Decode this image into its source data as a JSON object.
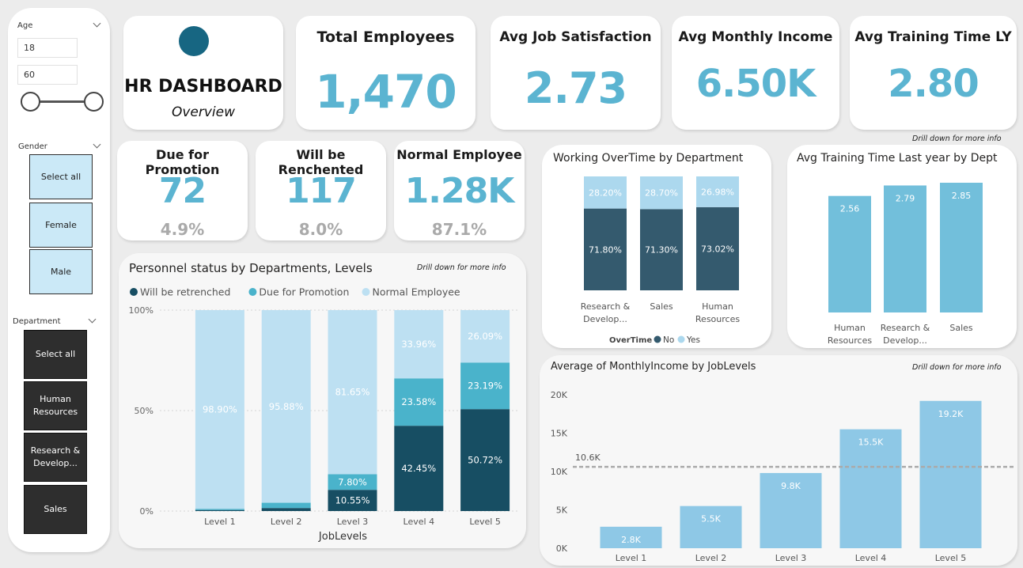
{
  "slicers": {
    "age": {
      "title": "Age",
      "min_value": "18",
      "max_value": "60"
    },
    "gender": {
      "title": "Gender",
      "options": [
        "Select all",
        "Female",
        "Male"
      ]
    },
    "department": {
      "title": "Department",
      "options": [
        "Select all",
        "Human Resources",
        "Research & Develop...",
        "Sales"
      ]
    }
  },
  "header": {
    "title": "HR DASHBOARD",
    "subtitle": "Overview"
  },
  "kpis": {
    "total_employees": {
      "title": "Total Employees",
      "value": "1,470"
    },
    "avg_job_satisfaction": {
      "title": "Avg Job Satisfaction",
      "value": "2.73"
    },
    "avg_monthly_income": {
      "title": "Avg Monthly Income",
      "value": "6.50K"
    },
    "avg_training_time": {
      "title": "Avg Training Time LY",
      "value": "2.80"
    },
    "due_for_promotion": {
      "title": "Due for Promotion",
      "value": "72",
      "pct": "4.9%"
    },
    "retrenched": {
      "title": "Will be Renchented",
      "value": "117",
      "pct": "8.0%"
    },
    "normal": {
      "title": "Normal Employee",
      "value": "1.28K",
      "pct": "87.1%"
    }
  },
  "hints": {
    "drill": "Drill down for more info"
  },
  "colors": {
    "dark": "#174e63",
    "mid": "#4ab3cb",
    "light": "#bde0f2",
    "ot_no": "#345a6e",
    "ot_yes": "#acd8ee",
    "bar": "#72bfdb",
    "income_bar": "#8ec8e6",
    "accent": "#5bb4d1",
    "dot": "#176682"
  },
  "charts": {
    "personnel": {
      "title": "Personnel status by Departments, Levels",
      "xlabel": "JobLevels",
      "legend": [
        {
          "label": "Will be retrenched",
          "color": "#174e63"
        },
        {
          "label": "Due for Promotion",
          "color": "#4ab3cb"
        },
        {
          "label": "Normal Employee",
          "color": "#bde0f2"
        }
      ],
      "yticks": [
        "0%",
        "50%",
        "100%"
      ]
    },
    "overtime": {
      "title": "Working OverTime by Department",
      "legend_title": "OverTime",
      "legend": [
        {
          "label": "No",
          "color": "#345a6e"
        },
        {
          "label": "Yes",
          "color": "#acd8ee"
        }
      ]
    },
    "training": {
      "title": "Avg Training Time Last year by Dept"
    },
    "income": {
      "title": "Average of MonthlyIncome by JobLevels",
      "avg_line_label": "10.6K",
      "yticks": [
        "0K",
        "5K",
        "10K",
        "15K",
        "20K"
      ]
    }
  },
  "chart_data": [
    {
      "type": "bar",
      "stacked": "100%",
      "title": "Personnel status by Departments, Levels",
      "xlabel": "JobLevels",
      "categories": [
        "Level 1",
        "Level 2",
        "Level 3",
        "Level 4",
        "Level 5"
      ],
      "series": [
        {
          "name": "Will be retrenched",
          "values": [
            0.5,
            1.5,
            10.55,
            42.45,
            50.72
          ],
          "labels": [
            "",
            "",
            "10.55%",
            "42.45%",
            "50.72%"
          ]
        },
        {
          "name": "Due for Promotion",
          "values": [
            0.6,
            2.62,
            7.8,
            23.58,
            23.19
          ],
          "labels": [
            "",
            "",
            "7.80%",
            "23.58%",
            "23.19%"
          ]
        },
        {
          "name": "Normal Employee",
          "values": [
            98.9,
            95.88,
            81.65,
            33.96,
            26.09
          ],
          "labels": [
            "98.90%",
            "95.88%",
            "81.65%",
            "33.96%",
            "26.09%"
          ]
        }
      ],
      "ylim": [
        0,
        100
      ],
      "legend": "top-left"
    },
    {
      "type": "bar",
      "stacked": "100%",
      "title": "Working OverTime by Department",
      "categories": [
        "Research & Develop...",
        "Sales",
        "Human Resources"
      ],
      "series": [
        {
          "name": "No",
          "values": [
            71.8,
            71.3,
            73.02
          ],
          "labels": [
            "71.80%",
            "71.30%",
            "73.02%"
          ]
        },
        {
          "name": "Yes",
          "values": [
            28.2,
            28.7,
            26.98
          ],
          "labels": [
            "28.20%",
            "28.70%",
            "26.98%"
          ]
        }
      ],
      "legend": "bottom"
    },
    {
      "type": "bar",
      "title": "Avg Training Time Last year by Dept",
      "categories": [
        "Human Resources",
        "Research & Develop...",
        "Sales"
      ],
      "values": [
        2.56,
        2.79,
        2.85
      ],
      "labels": [
        "2.56",
        "2.79",
        "2.85"
      ],
      "ylim": [
        0,
        2.85
      ]
    },
    {
      "type": "bar",
      "title": "Average of MonthlyIncome by JobLevels",
      "categories": [
        "Level 1",
        "Level 2",
        "Level 3",
        "Level 4",
        "Level 5"
      ],
      "values": [
        2.8,
        5.5,
        9.8,
        15.5,
        19.2
      ],
      "labels": [
        "2.8K",
        "5.5K",
        "9.8K",
        "15.5K",
        "19.2K"
      ],
      "average_line": 10.6,
      "ylim": [
        0,
        20
      ],
      "grid": true
    }
  ]
}
